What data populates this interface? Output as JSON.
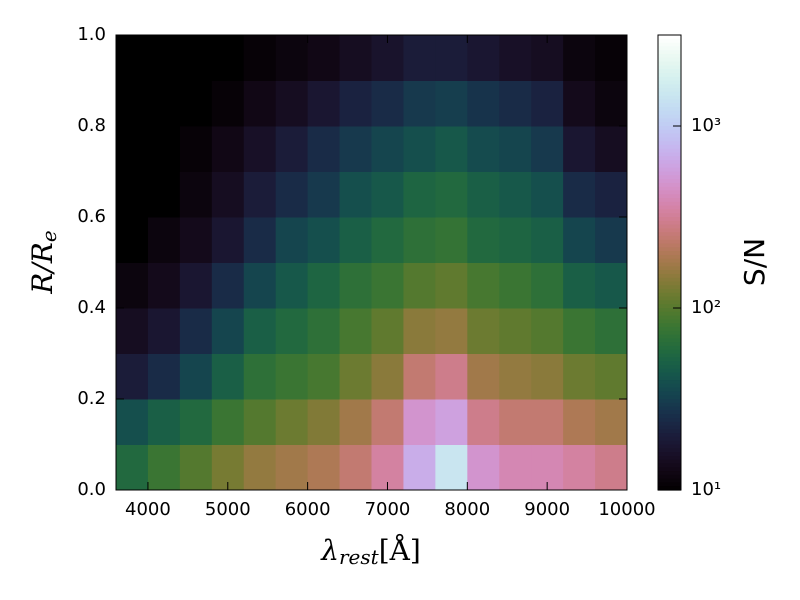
{
  "chart_data": {
    "type": "heatmap",
    "xlabel": {
      "symbol": "λ",
      "sub": "rest",
      "unit": "[Å]"
    },
    "ylabel": {
      "main": "R/R",
      "sub": "e"
    },
    "colorbar_label": "S/N",
    "colormap": "cubehelix",
    "color_scale": "log",
    "xlim": [
      3600,
      10000
    ],
    "xticks": [
      4000,
      5000,
      6000,
      7000,
      8000,
      9000,
      10000
    ],
    "ylim": [
      0,
      1
    ],
    "yticks": [
      {
        "value": 0,
        "label": "0.0"
      },
      0.2,
      0.4,
      0.6,
      0.8,
      {
        "value": 1,
        "label": "1.0"
      }
    ],
    "clim": [
      10,
      3162
    ],
    "cticks": [
      {
        "value": 10,
        "label": "10¹"
      },
      {
        "value": 100,
        "label": "10²"
      },
      {
        "value": 1000,
        "label": "10³"
      }
    ],
    "x_edges": [
      3600,
      4000,
      4400,
      4800,
      5200,
      5600,
      6000,
      6400,
      6800,
      7200,
      7600,
      8000,
      8400,
      8800,
      9200,
      9600,
      10000
    ],
    "y_edges": [
      0,
      0.1,
      0.2,
      0.3,
      0.4,
      0.5,
      0.6,
      0.7,
      0.8,
      0.9,
      1.0
    ],
    "z": [
      [
        60,
        80,
        100,
        130,
        160,
        180,
        200,
        250,
        350,
        700,
        1500,
        500,
        400,
        400,
        350,
        300
      ],
      [
        40,
        50,
        60,
        80,
        100,
        120,
        140,
        180,
        250,
        500,
        600,
        300,
        250,
        250,
        200,
        180
      ],
      [
        20,
        25,
        35,
        50,
        70,
        80,
        90,
        120,
        150,
        250,
        300,
        180,
        160,
        150,
        120,
        110
      ],
      [
        15,
        18,
        25,
        35,
        50,
        60,
        70,
        90,
        110,
        150,
        160,
        120,
        110,
        100,
        80,
        70
      ],
      [
        12,
        14,
        18,
        25,
        35,
        45,
        55,
        70,
        80,
        100,
        110,
        90,
        80,
        70,
        50,
        45
      ],
      [
        10,
        12,
        14,
        18,
        25,
        35,
        40,
        50,
        60,
        70,
        75,
        60,
        55,
        50,
        35,
        30
      ],
      [
        10,
        10,
        12,
        15,
        20,
        25,
        30,
        40,
        45,
        55,
        60,
        50,
        45,
        40,
        25,
        22
      ],
      [
        10,
        10,
        11,
        13,
        16,
        20,
        25,
        30,
        35,
        40,
        45,
        38,
        35,
        30,
        18,
        15
      ],
      [
        10,
        10,
        10,
        11,
        13,
        15,
        18,
        22,
        25,
        30,
        32,
        28,
        25,
        22,
        14,
        12
      ],
      [
        10,
        10,
        10,
        10,
        11,
        12,
        13,
        15,
        17,
        20,
        20,
        18,
        16,
        15,
        12,
        11
      ]
    ]
  }
}
